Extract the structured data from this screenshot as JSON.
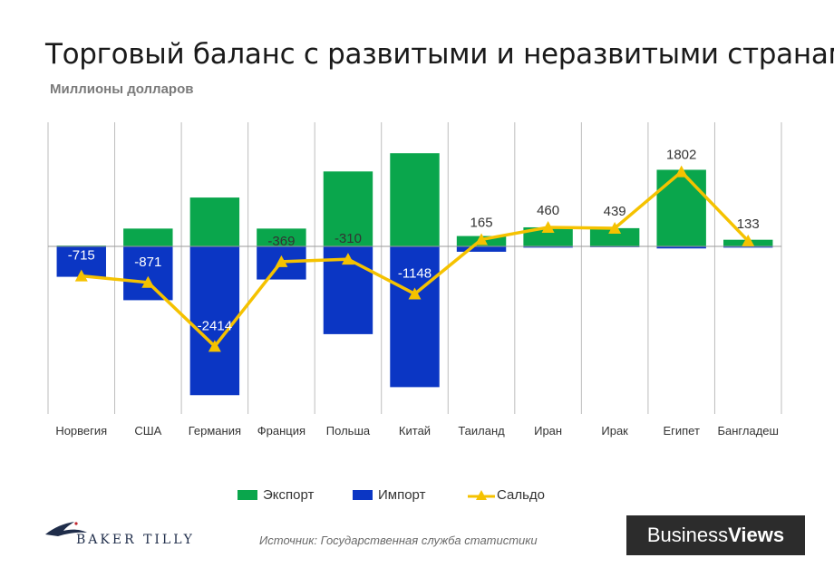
{
  "title": "Торговый баланс с развитыми и неразвитыми странами",
  "subtitle": "Миллионы долларов",
  "chart_data": {
    "type": "bar",
    "categories": [
      "Норвегия",
      "США",
      "Германия",
      "Франция",
      "Польша",
      "Китай",
      "Таиланд",
      "Иран",
      "Ирак",
      "Египет",
      "Бангладеш"
    ],
    "series": [
      {
        "name": "Экспорт",
        "kind": "bar",
        "color": "#0aa64c",
        "values": [
          20,
          430,
          1180,
          430,
          1810,
          2250,
          250,
          460,
          440,
          1850,
          160
        ]
      },
      {
        "name": "Импорт",
        "kind": "bar",
        "color": "#0b36c4",
        "values": [
          -735,
          -1300,
          -3594,
          -800,
          -2120,
          -3400,
          -130,
          -30,
          -20,
          -50,
          -30
        ]
      },
      {
        "name": "Сальдо",
        "kind": "line",
        "color": "#f5c200",
        "values": [
          -715,
          -871,
          -2414,
          -369,
          -310,
          -1148,
          165,
          460,
          439,
          1802,
          133
        ]
      }
    ],
    "data_labels": [
      "-715",
      "-871",
      "-2414",
      "-369",
      "-310",
      "-1148",
      "165",
      "460",
      "439",
      "1802",
      "133"
    ],
    "ylim": [
      -3900,
      2200
    ],
    "grid": "vertical",
    "legend_position": "bottom-center"
  },
  "legend": [
    {
      "label": "Экспорт",
      "color": "#0aa64c"
    },
    {
      "label": "Импорт",
      "color": "#0b36c4"
    },
    {
      "label": "Сальдо",
      "color": "#f5c200"
    }
  ],
  "source": "Источник: Государственная служба статистики",
  "brand_left": "BAKER TILLY",
  "brand_right_1": "Business",
  "brand_right_2": "Views"
}
